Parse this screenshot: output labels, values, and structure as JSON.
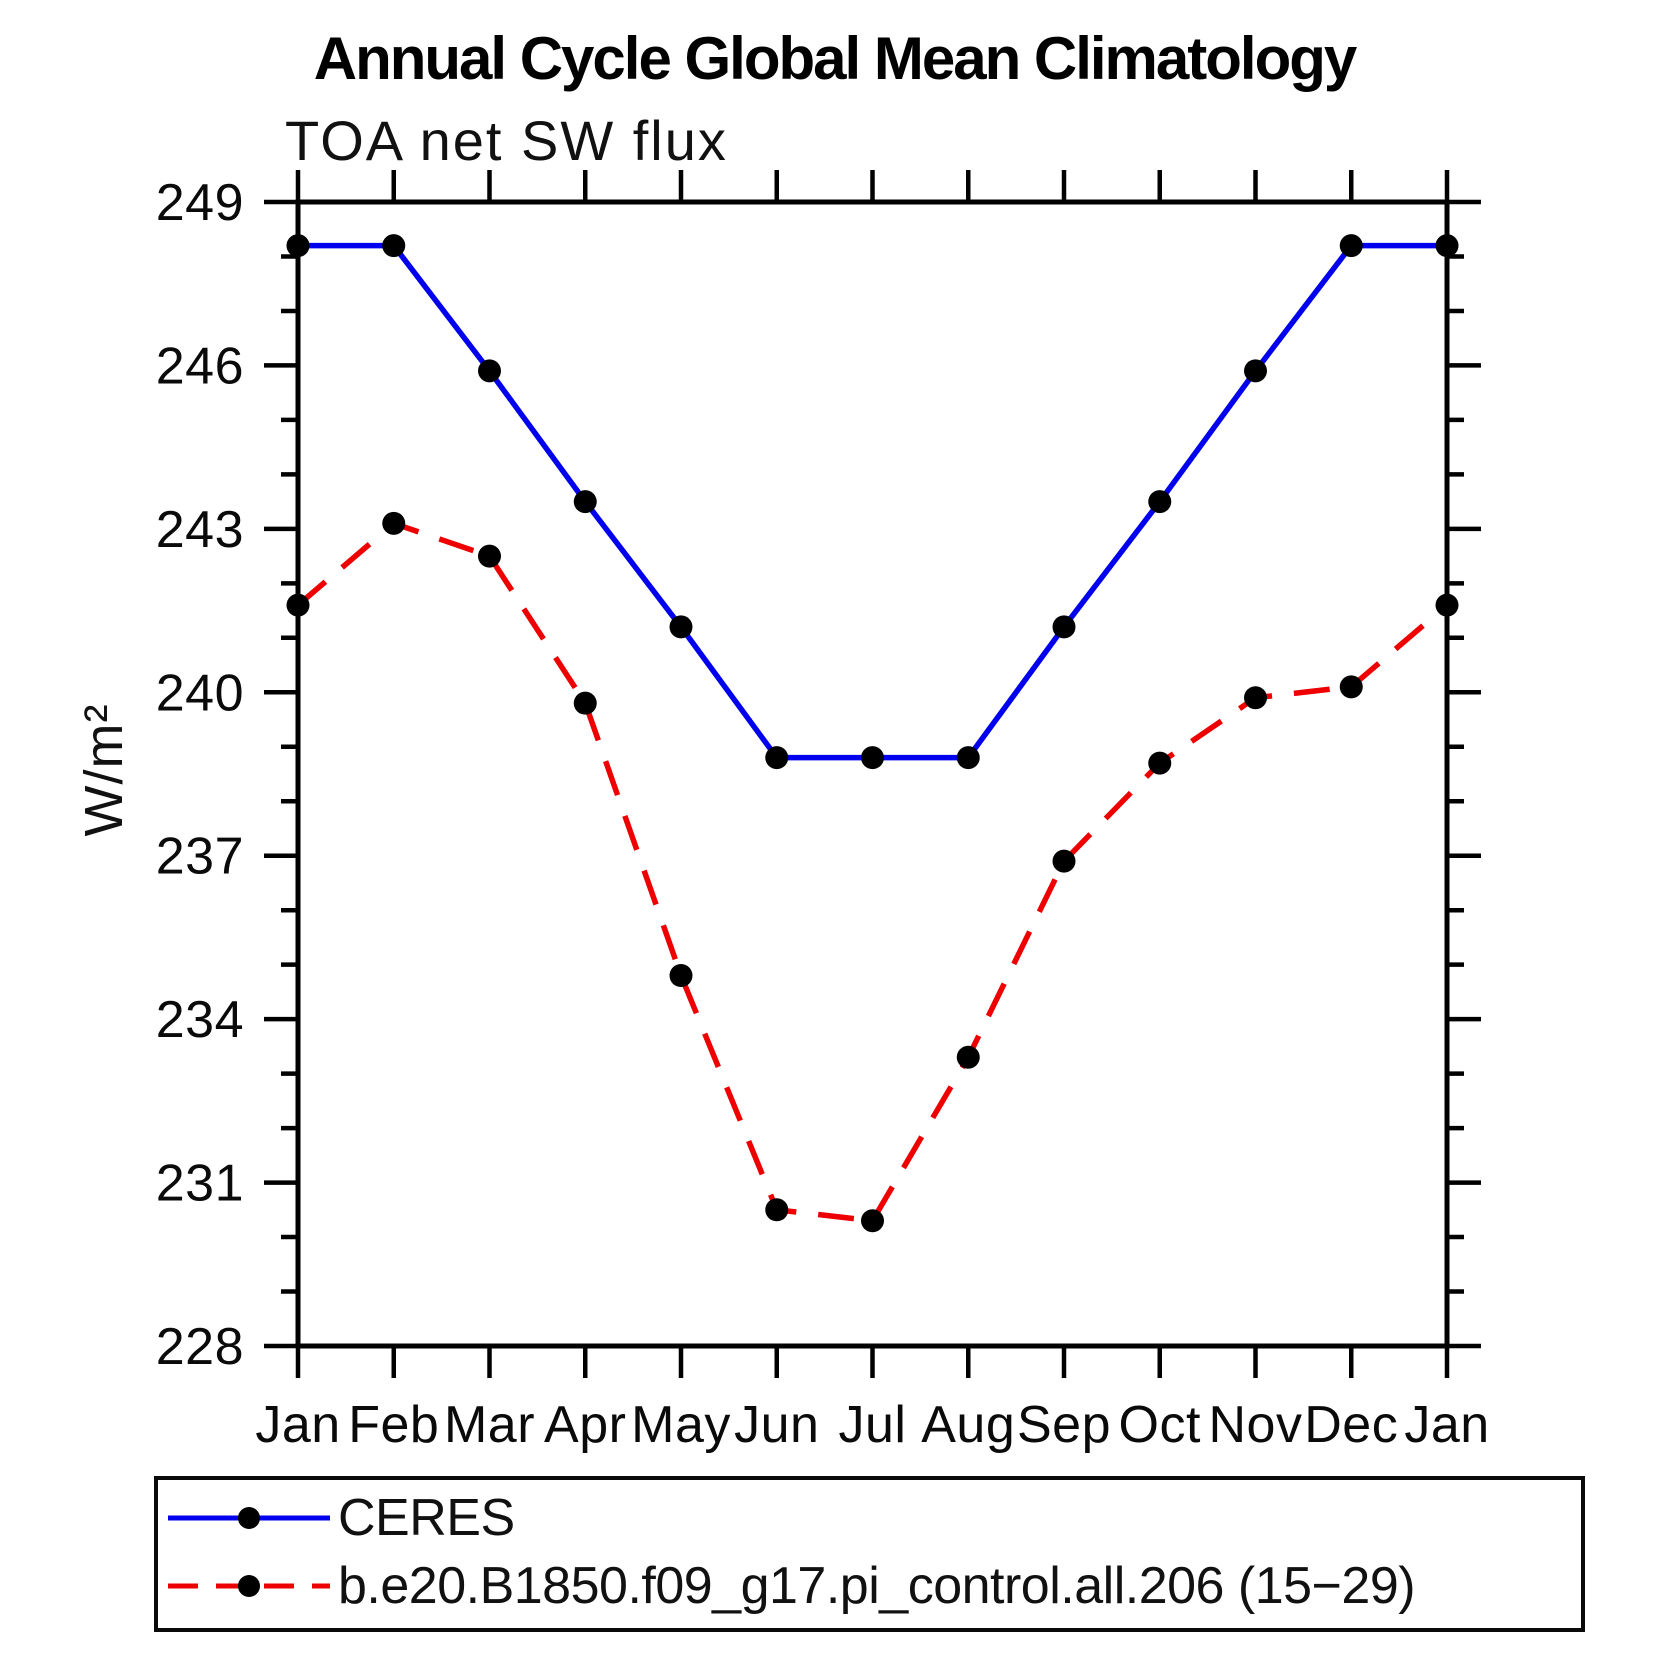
{
  "header": {
    "title": "Annual Cycle Global Mean Climatology",
    "subtitle": "TOA net SW flux"
  },
  "chart_data": {
    "type": "line",
    "title": "Annual Cycle Global Mean Climatology",
    "subtitle": "TOA net SW flux",
    "xlabel": "",
    "ylabel": "W/m²",
    "x_categories": [
      "Jan",
      "Feb",
      "Mar",
      "Apr",
      "May",
      "Jun",
      "Jul",
      "Aug",
      "Sep",
      "Oct",
      "Nov",
      "Dec",
      "Jan"
    ],
    "ylim": [
      228,
      249
    ],
    "yticks_major": [
      228,
      231,
      234,
      237,
      240,
      243,
      246,
      249
    ],
    "ytick_minor_step": 1,
    "grid": false,
    "frame_color": "#000000",
    "marker_color": "#000000",
    "legend_position": "bottom",
    "series": [
      {
        "name": "CERES",
        "color": "#0000ee",
        "line_style": "solid",
        "marker": "circle",
        "values": [
          248.2,
          248.2,
          245.9,
          243.5,
          241.2,
          238.8,
          238.8,
          238.8,
          241.2,
          243.5,
          245.9,
          248.2,
          248.2
        ]
      },
      {
        "name": "b.e20.B1850.f09_g17.pi_control.all.206 (15−29)",
        "color": "#ee0000",
        "line_style": "dashed",
        "marker": "circle",
        "values": [
          241.6,
          243.1,
          242.5,
          239.8,
          234.8,
          230.5,
          230.3,
          233.3,
          236.9,
          238.7,
          239.9,
          240.1,
          241.6
        ]
      }
    ]
  }
}
